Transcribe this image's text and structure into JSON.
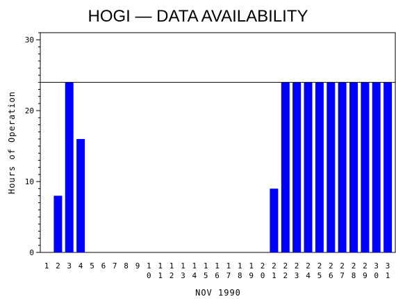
{
  "chart_data": {
    "type": "bar",
    "title": "HOGI — DATA AVAILABILITY",
    "xlabel": "NOV 1990",
    "ylabel": "Hours of Operation",
    "ylim": [
      0,
      31
    ],
    "yticks": [
      0,
      10,
      20,
      30
    ],
    "reference_line": 24,
    "categories": [
      "1",
      "2",
      "3",
      "4",
      "5",
      "6",
      "7",
      "8",
      "9",
      "10",
      "11",
      "12",
      "13",
      "14",
      "15",
      "16",
      "17",
      "18",
      "19",
      "20",
      "21",
      "22",
      "23",
      "24",
      "25",
      "26",
      "27",
      "28",
      "29",
      "30",
      "31"
    ],
    "values": [
      0,
      8,
      24,
      16,
      0,
      0,
      0,
      0,
      0,
      0,
      0,
      0,
      0,
      0,
      0,
      0,
      0,
      0,
      0,
      0,
      9,
      24,
      24,
      24,
      24,
      24,
      24,
      24,
      24,
      24,
      24
    ],
    "bar_color": "#0000ff",
    "grid": false
  }
}
